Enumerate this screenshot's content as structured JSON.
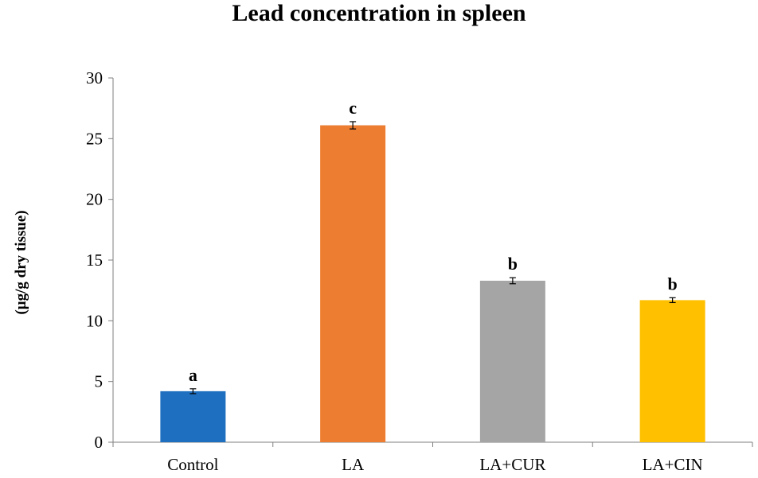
{
  "chart_data": {
    "type": "bar",
    "title": "Lead concentration in spleen",
    "xlabel": "",
    "ylabel": "(µg/g dry tissue)",
    "ylim": [
      0,
      30
    ],
    "yticks": [
      0,
      5,
      10,
      15,
      20,
      25,
      30
    ],
    "grid": false,
    "categories": [
      "Control",
      "LA",
      "LA+CUR",
      "LA+CIN"
    ],
    "values": [
      4.2,
      26.1,
      13.3,
      11.7
    ],
    "errors": [
      0.2,
      0.3,
      0.25,
      0.2
    ],
    "significance_labels": [
      "a",
      "c",
      "b",
      "b"
    ],
    "colors": [
      "#1f6fc0",
      "#ed7d31",
      "#a5a5a5",
      "#ffc000"
    ]
  }
}
